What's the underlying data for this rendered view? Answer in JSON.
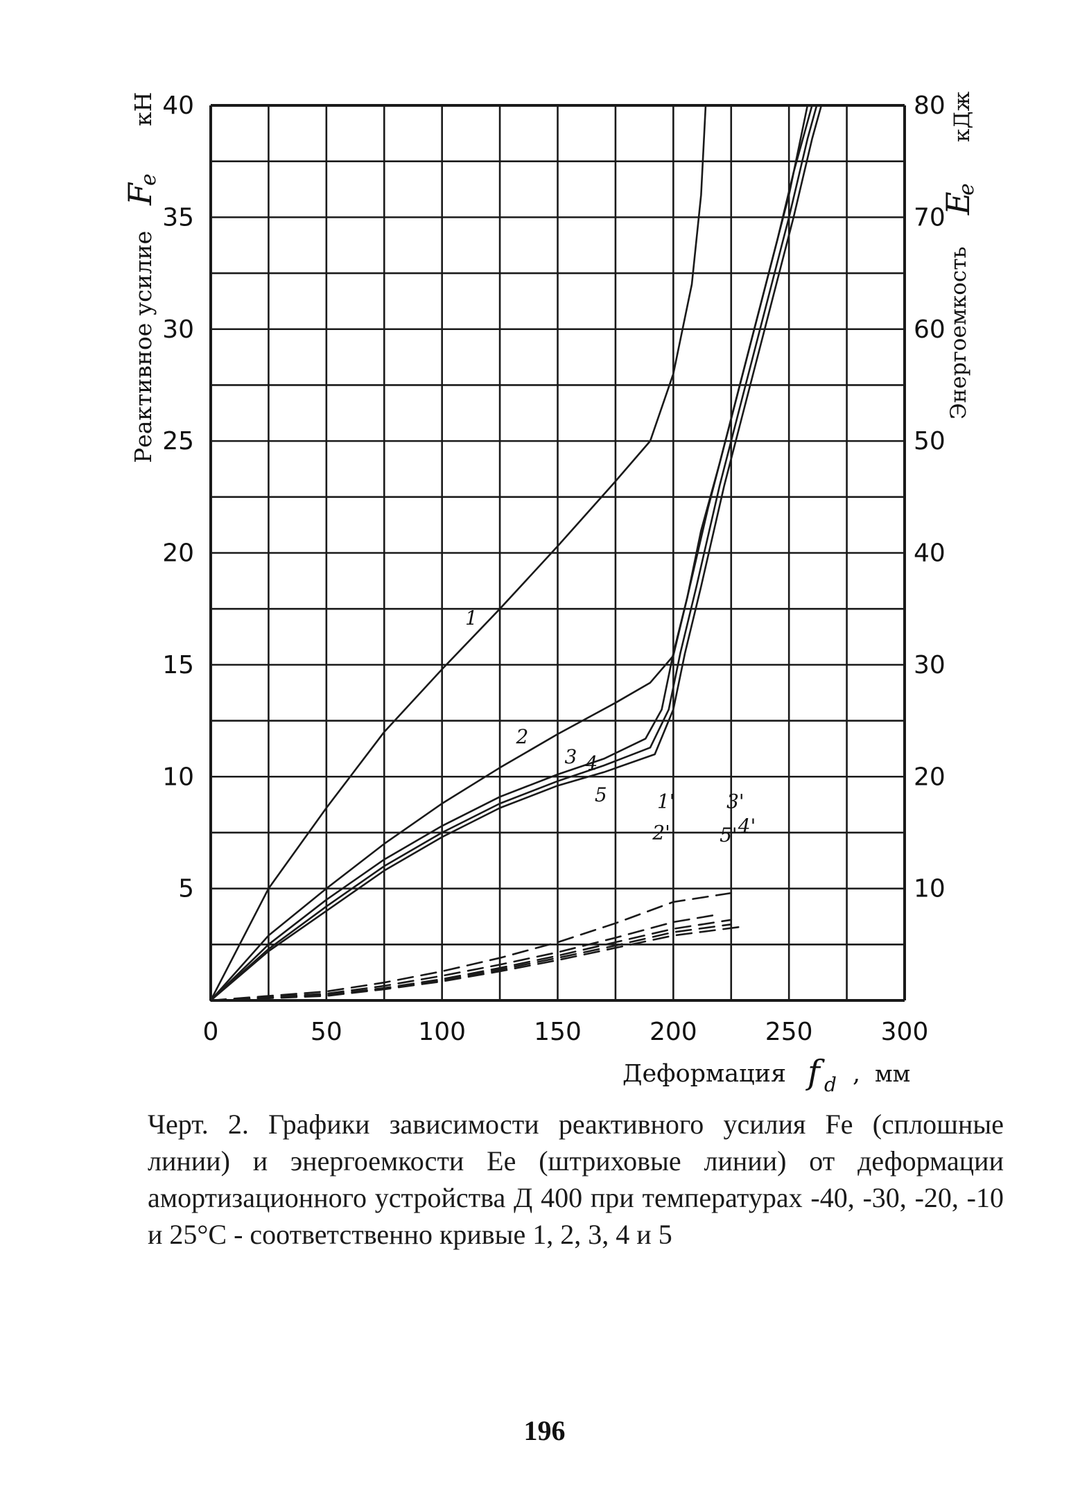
{
  "chart_data": {
    "type": "line",
    "x_axis": {
      "label": "Деформация",
      "symbol": "f",
      "symbol_subscript": "d",
      "unit": "мм",
      "range": [
        0,
        300
      ],
      "ticks": [
        "0",
        "50",
        "100",
        "150",
        "200",
        "250",
        "300"
      ]
    },
    "y_left_axis": {
      "label": "Реактивное усилие",
      "symbol": "F",
      "symbol_subscript": "e",
      "unit": "кН",
      "range": [
        0,
        40
      ],
      "ticks": [
        "5",
        "10",
        "15",
        "20",
        "25",
        "30",
        "35",
        "40"
      ]
    },
    "y_right_axis": {
      "label": "Энергоемкость",
      "symbol": "E",
      "symbol_subscript": "e",
      "unit": "кДж",
      "range": [
        0,
        80
      ],
      "ticks": [
        "10",
        "20",
        "30",
        "40",
        "50",
        "60",
        "70",
        "80"
      ]
    },
    "grid": true,
    "series": [
      {
        "name": "1",
        "axis": "left",
        "style": "solid",
        "points": [
          [
            0,
            0
          ],
          [
            25,
            5
          ],
          [
            50,
            8.6
          ],
          [
            75,
            12
          ],
          [
            100,
            14.8
          ],
          [
            125,
            17.5
          ],
          [
            150,
            20.3
          ],
          [
            175,
            23.2
          ],
          [
            190,
            25
          ],
          [
            200,
            28
          ],
          [
            208,
            32
          ],
          [
            212,
            36
          ],
          [
            214,
            40
          ]
        ]
      },
      {
        "name": "2",
        "axis": "left",
        "style": "solid",
        "points": [
          [
            0,
            0
          ],
          [
            25,
            2.9
          ],
          [
            50,
            5
          ],
          [
            75,
            7
          ],
          [
            100,
            8.8
          ],
          [
            125,
            10.4
          ],
          [
            150,
            11.9
          ],
          [
            175,
            13.3
          ],
          [
            190,
            14.2
          ],
          [
            200,
            15.4
          ],
          [
            206,
            18
          ],
          [
            212,
            21
          ],
          [
            220,
            24
          ],
          [
            230,
            28
          ],
          [
            240,
            32
          ],
          [
            250,
            36
          ],
          [
            258,
            40
          ]
        ]
      },
      {
        "name": "3",
        "axis": "left",
        "style": "solid",
        "points": [
          [
            0,
            0
          ],
          [
            25,
            2.5
          ],
          [
            50,
            4.5
          ],
          [
            75,
            6.3
          ],
          [
            100,
            7.8
          ],
          [
            125,
            9.1
          ],
          [
            150,
            10.1
          ],
          [
            170,
            10.8
          ],
          [
            188,
            11.7
          ],
          [
            195,
            13
          ],
          [
            200,
            15.5
          ],
          [
            206,
            18
          ],
          [
            215,
            22
          ],
          [
            225,
            26
          ],
          [
            235,
            30
          ],
          [
            245,
            34
          ],
          [
            252,
            37
          ],
          [
            260,
            40
          ]
        ]
      },
      {
        "name": "4",
        "axis": "left",
        "style": "solid",
        "points": [
          [
            0,
            0
          ],
          [
            25,
            2.3
          ],
          [
            50,
            4.2
          ],
          [
            75,
            6
          ],
          [
            100,
            7.5
          ],
          [
            125,
            8.8
          ],
          [
            150,
            9.8
          ],
          [
            170,
            10.5
          ],
          [
            190,
            11.3
          ],
          [
            198,
            13
          ],
          [
            203,
            15.5
          ],
          [
            210,
            18.5
          ],
          [
            220,
            23
          ],
          [
            230,
            27
          ],
          [
            240,
            31
          ],
          [
            250,
            35
          ],
          [
            258,
            38.5
          ],
          [
            262,
            40
          ]
        ]
      },
      {
        "name": "5",
        "axis": "left",
        "style": "solid",
        "points": [
          [
            0,
            0
          ],
          [
            25,
            2.2
          ],
          [
            50,
            4
          ],
          [
            75,
            5.8
          ],
          [
            100,
            7.3
          ],
          [
            125,
            8.6
          ],
          [
            150,
            9.6
          ],
          [
            170,
            10.2
          ],
          [
            192,
            11
          ],
          [
            200,
            13
          ],
          [
            205,
            15.5
          ],
          [
            212,
            18.5
          ],
          [
            222,
            23
          ],
          [
            232,
            27
          ],
          [
            242,
            31
          ],
          [
            252,
            35
          ],
          [
            260,
            38.5
          ],
          [
            264,
            40
          ]
        ]
      },
      {
        "name": "1'",
        "axis": "right",
        "style": "dashed",
        "points": [
          [
            0,
            0
          ],
          [
            50,
            0.8
          ],
          [
            75,
            1.6
          ],
          [
            100,
            2.6
          ],
          [
            125,
            3.8
          ],
          [
            150,
            5.2
          ],
          [
            175,
            6.9
          ],
          [
            200,
            8.8
          ],
          [
            225,
            9.6
          ]
        ]
      },
      {
        "name": "2'",
        "axis": "right",
        "style": "dashed",
        "points": [
          [
            0,
            0
          ],
          [
            50,
            0.6
          ],
          [
            75,
            1.3
          ],
          [
            100,
            2.2
          ],
          [
            125,
            3.2
          ],
          [
            150,
            4.3
          ],
          [
            175,
            5.6
          ],
          [
            200,
            7
          ],
          [
            220,
            7.7
          ]
        ]
      },
      {
        "name": "3'",
        "axis": "right",
        "style": "dashed",
        "points": [
          [
            0,
            0
          ],
          [
            50,
            0.5
          ],
          [
            75,
            1.1
          ],
          [
            100,
            1.9
          ],
          [
            125,
            2.9
          ],
          [
            150,
            4
          ],
          [
            175,
            5.2
          ],
          [
            200,
            6.4
          ],
          [
            225,
            7.2
          ]
        ]
      },
      {
        "name": "4'",
        "axis": "right",
        "style": "dashed",
        "points": [
          [
            0,
            0
          ],
          [
            50,
            0.45
          ],
          [
            75,
            1.05
          ],
          [
            100,
            1.8
          ],
          [
            125,
            2.75
          ],
          [
            150,
            3.8
          ],
          [
            175,
            4.9
          ],
          [
            200,
            6.1
          ],
          [
            225,
            6.8
          ]
        ]
      },
      {
        "name": "5'",
        "axis": "right",
        "style": "dashed",
        "points": [
          [
            0,
            0
          ],
          [
            50,
            0.4
          ],
          [
            75,
            1
          ],
          [
            100,
            1.7
          ],
          [
            125,
            2.6
          ],
          [
            150,
            3.6
          ],
          [
            175,
            4.7
          ],
          [
            200,
            5.8
          ],
          [
            230,
            6.6
          ]
        ]
      }
    ],
    "curve_labels": [
      {
        "text": "1",
        "x": 110,
        "y": 16.8
      },
      {
        "text": "2",
        "x": 132,
        "y": 11.5
      },
      {
        "text": "3",
        "x": 153,
        "y": 10.6
      },
      {
        "text": "4",
        "x": 162,
        "y": 10.3
      },
      {
        "text": "5",
        "x": 166,
        "y": 8.9
      },
      {
        "text": "1'",
        "x": 193,
        "y": 8.6
      },
      {
        "text": "2'",
        "x": 191,
        "y": 7.2
      },
      {
        "text": "3'",
        "x": 223,
        "y": 8.6
      },
      {
        "text": "4'",
        "x": 228,
        "y": 7.5
      },
      {
        "text": "5'",
        "x": 220,
        "y": 7.1
      }
    ]
  },
  "caption": "Черт. 2. Графики зависимости реактивного усилия Fе (сплошные линии) и энергоемкости Eе (штриховые линии) от деформации амортизационного устройства Д 400 при температурах -40, -30, -20, -10 и 25°С - соответственно кривые 1, 2, 3, 4 и 5",
  "page_number": "196"
}
